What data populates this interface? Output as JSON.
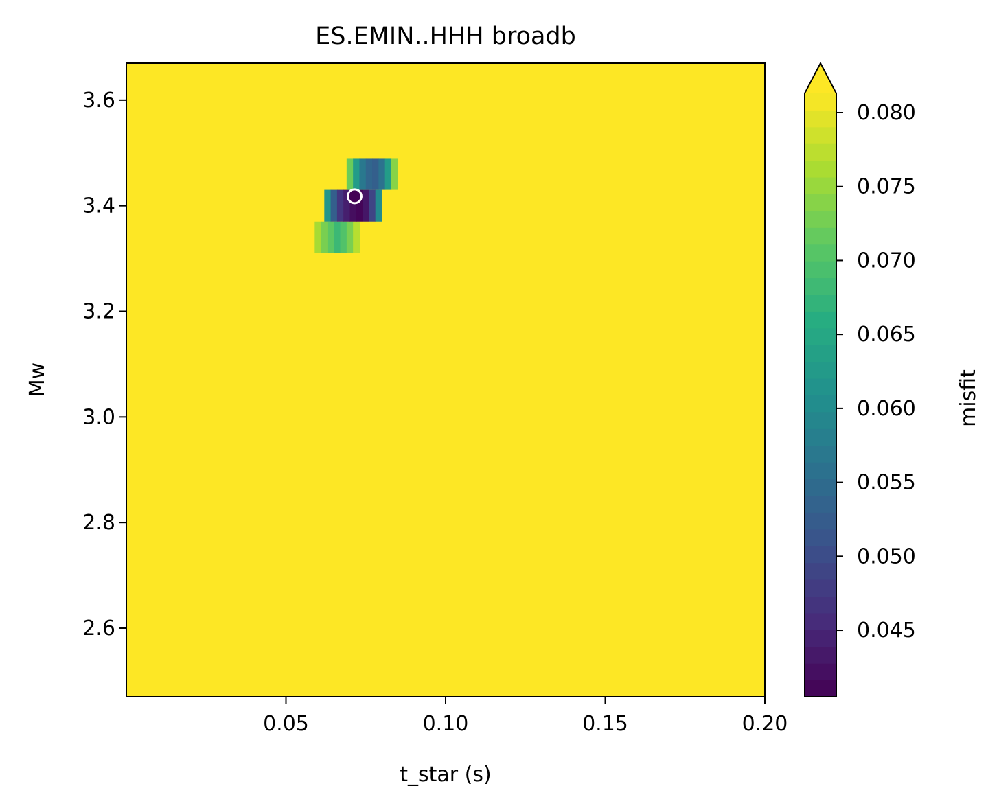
{
  "chart_data": {
    "type": "heatmap",
    "title": "ES.EMIN..HHH broadb",
    "xlabel": "t_star (s)",
    "ylabel": "Mw",
    "xlim": [
      0.0,
      0.2
    ],
    "ylim": [
      2.47,
      3.67
    ],
    "xticks": [
      {
        "value": 0.05,
        "label": "0.05"
      },
      {
        "value": 0.1,
        "label": "0.10"
      },
      {
        "value": 0.15,
        "label": "0.15"
      },
      {
        "value": 0.2,
        "label": "0.20"
      }
    ],
    "yticks": [
      {
        "value": 2.6,
        "label": "2.6"
      },
      {
        "value": 2.8,
        "label": "2.8"
      },
      {
        "value": 3.0,
        "label": "3.0"
      },
      {
        "value": 3.2,
        "label": "3.2"
      },
      {
        "value": 3.4,
        "label": "3.4"
      },
      {
        "value": 3.6,
        "label": "3.6"
      }
    ],
    "colormap": "viridis",
    "background_value": 0.082,
    "colorbar": {
      "label": "misfit",
      "range": [
        0.0405,
        0.0813
      ],
      "extend": "max",
      "ticks": [
        {
          "value": 0.045,
          "label": "0.045"
        },
        {
          "value": 0.05,
          "label": "0.050"
        },
        {
          "value": 0.055,
          "label": "0.055"
        },
        {
          "value": 0.06,
          "label": "0.060"
        },
        {
          "value": 0.065,
          "label": "0.065"
        },
        {
          "value": 0.07,
          "label": "0.070"
        },
        {
          "value": 0.075,
          "label": "0.075"
        },
        {
          "value": 0.08,
          "label": "0.080"
        }
      ]
    },
    "rows": [
      {
        "mw_min": 3.31,
        "mw_max": 3.37,
        "t_star": [
          0.06,
          0.062,
          0.064,
          0.066,
          0.068,
          0.07,
          0.072
        ],
        "misfit": [
          0.076,
          0.073,
          0.071,
          0.068,
          0.07,
          0.073,
          0.077
        ]
      },
      {
        "mw_min": 3.37,
        "mw_max": 3.43,
        "t_star": [
          0.063,
          0.065,
          0.067,
          0.069,
          0.071,
          0.073,
          0.075,
          0.077,
          0.079
        ],
        "misfit": [
          0.062,
          0.053,
          0.047,
          0.044,
          0.042,
          0.041,
          0.043,
          0.049,
          0.06
        ]
      },
      {
        "mw_min": 3.43,
        "mw_max": 3.49,
        "t_star": [
          0.07,
          0.072,
          0.074,
          0.076,
          0.078,
          0.08,
          0.082,
          0.084
        ],
        "misfit": [
          0.072,
          0.063,
          0.057,
          0.054,
          0.053,
          0.056,
          0.063,
          0.074
        ]
      }
    ],
    "best_fit": {
      "t_star": 0.0715,
      "mw": 3.418
    }
  }
}
